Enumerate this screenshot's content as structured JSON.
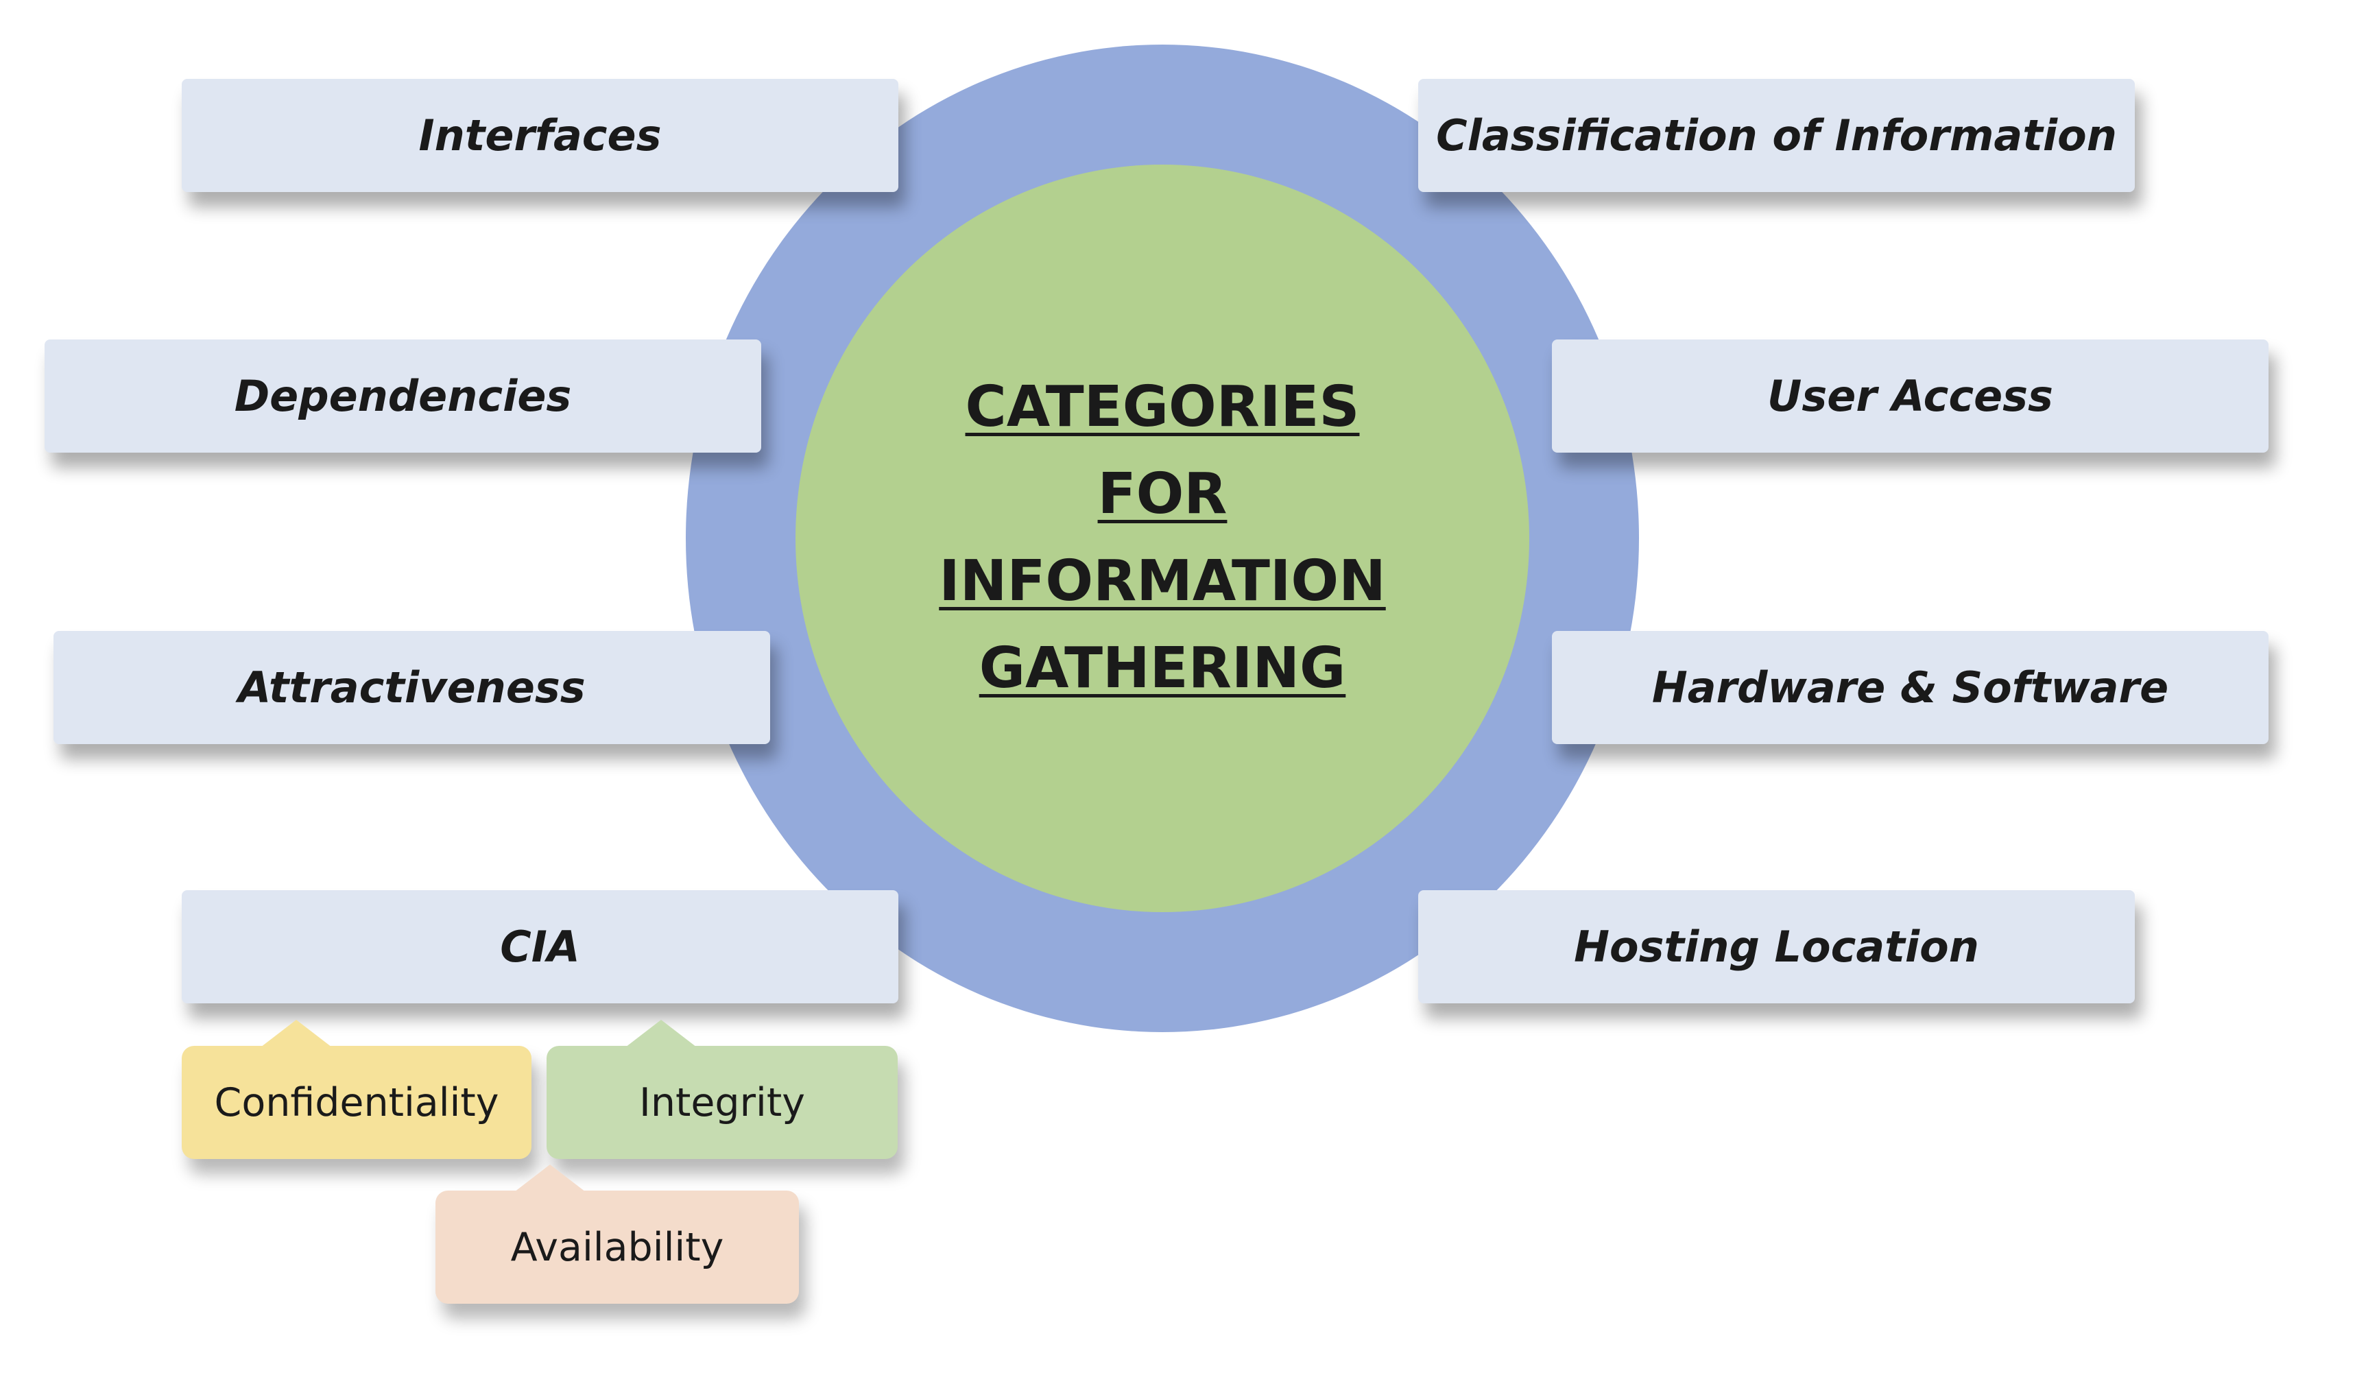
{
  "title_lines": [
    "CATEGORIES",
    "FOR",
    "INFORMATION",
    "GATHERING"
  ],
  "categories_left": [
    {
      "id": "interfaces",
      "label": "Interfaces"
    },
    {
      "id": "dependencies",
      "label": "Dependencies"
    },
    {
      "id": "attractiveness",
      "label": "Attractiveness"
    },
    {
      "id": "cia",
      "label": "CIA"
    }
  ],
  "categories_right": [
    {
      "id": "classification",
      "label": "Classification of Information"
    },
    {
      "id": "user-access",
      "label": "User Access"
    },
    {
      "id": "hardware-software",
      "label": "Hardware & Software"
    },
    {
      "id": "hosting-location",
      "label": "Hosting Location"
    }
  ],
  "cia_subitems": [
    {
      "label": "Confidentiality"
    },
    {
      "label": "Integrity"
    },
    {
      "label": "Availability"
    }
  ],
  "colors": {
    "outer_ring": "#94aadb",
    "inner_circle": "#b3d08f",
    "category_box": "#dfe6f2",
    "confidentiality": "#f6e29a",
    "integrity": "#c6dcb1",
    "availability": "#f4dccb"
  }
}
